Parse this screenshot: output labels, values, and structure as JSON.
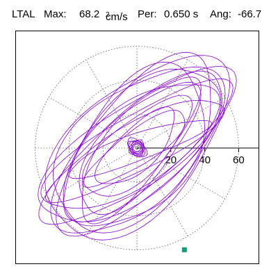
{
  "header": {
    "station": "LTAL",
    "max_label": "Max:",
    "max_value": "68.2",
    "max_unit": "cm/s",
    "max_unit_exp": "2",
    "period_label": "Per:",
    "period_value": "0.650 s",
    "angle_label": "Ang:",
    "angle_value": "-66.7"
  },
  "colors": {
    "trace": "#8b00d4",
    "end_marker": "#1a9a7a",
    "frame": "#000000",
    "grid": "#555555"
  },
  "chart_data": {
    "type": "line",
    "title": "",
    "xlabel": "",
    "ylabel": "",
    "rlim": [
      0,
      75
    ],
    "rings": [
      20,
      40,
      60
    ],
    "tick_labels": [
      "20",
      "40",
      "60"
    ],
    "grid": true,
    "spoke_step_deg": 30,
    "max": 68.2,
    "angle_deg": -66.7,
    "series": [
      {
        "values": [
          {
            "a": 2,
            "b": 3,
            "n": 40,
            "tilt": -45
          },
          {
            "a": 3,
            "b": 4,
            "n": 40,
            "tilt": -50
          },
          {
            "a": 4,
            "b": 5,
            "n": 40,
            "tilt": -40
          },
          {
            "a": 5,
            "b": 4,
            "n": 40,
            "tilt": -55
          },
          {
            "a": 6,
            "b": 3,
            "n": 40,
            "tilt": -35
          },
          {
            "a": 4,
            "b": 3,
            "n": 40,
            "tilt": -60
          },
          {
            "a": 7,
            "b": 4,
            "n": 40,
            "tilt": -45
          },
          {
            "a": 3,
            "b": 2,
            "n": 40,
            "tilt": -30
          },
          {
            "a": 12,
            "b": 30,
            "n": 72,
            "tilt": -46
          },
          {
            "a": 16,
            "b": 40,
            "n": 72,
            "tilt": -48
          },
          {
            "a": 20,
            "b": 48,
            "n": 72,
            "tilt": -42
          },
          {
            "a": 24,
            "b": 56,
            "n": 72,
            "tilt": -50
          },
          {
            "a": 28,
            "b": 62,
            "n": 72,
            "tilt": -44
          },
          {
            "a": 22,
            "b": 66,
            "n": 72,
            "tilt": -52
          },
          {
            "a": 30,
            "b": 64,
            "n": 72,
            "tilt": -40
          },
          {
            "a": 26,
            "b": 68,
            "n": 72,
            "tilt": -54
          },
          {
            "a": 34,
            "b": 60,
            "n": 72,
            "tilt": -47
          },
          {
            "a": 18,
            "b": 52,
            "n": 72,
            "tilt": -38
          },
          {
            "a": 14,
            "b": 58,
            "n": 72,
            "tilt": -62
          },
          {
            "a": 10,
            "b": 36,
            "n": 72,
            "tilt": -55
          },
          {
            "a": 32,
            "b": 54,
            "n": 72,
            "tilt": -36
          },
          {
            "a": 20,
            "b": 64,
            "n": 72,
            "tilt": -58
          },
          {
            "a": 36,
            "b": 66,
            "n": 72,
            "tilt": -45
          },
          {
            "a": 8,
            "b": 44,
            "n": 72,
            "tilt": -70
          }
        ],
        "end": {
          "x": 28,
          "y": -60
        }
      }
    ]
  }
}
